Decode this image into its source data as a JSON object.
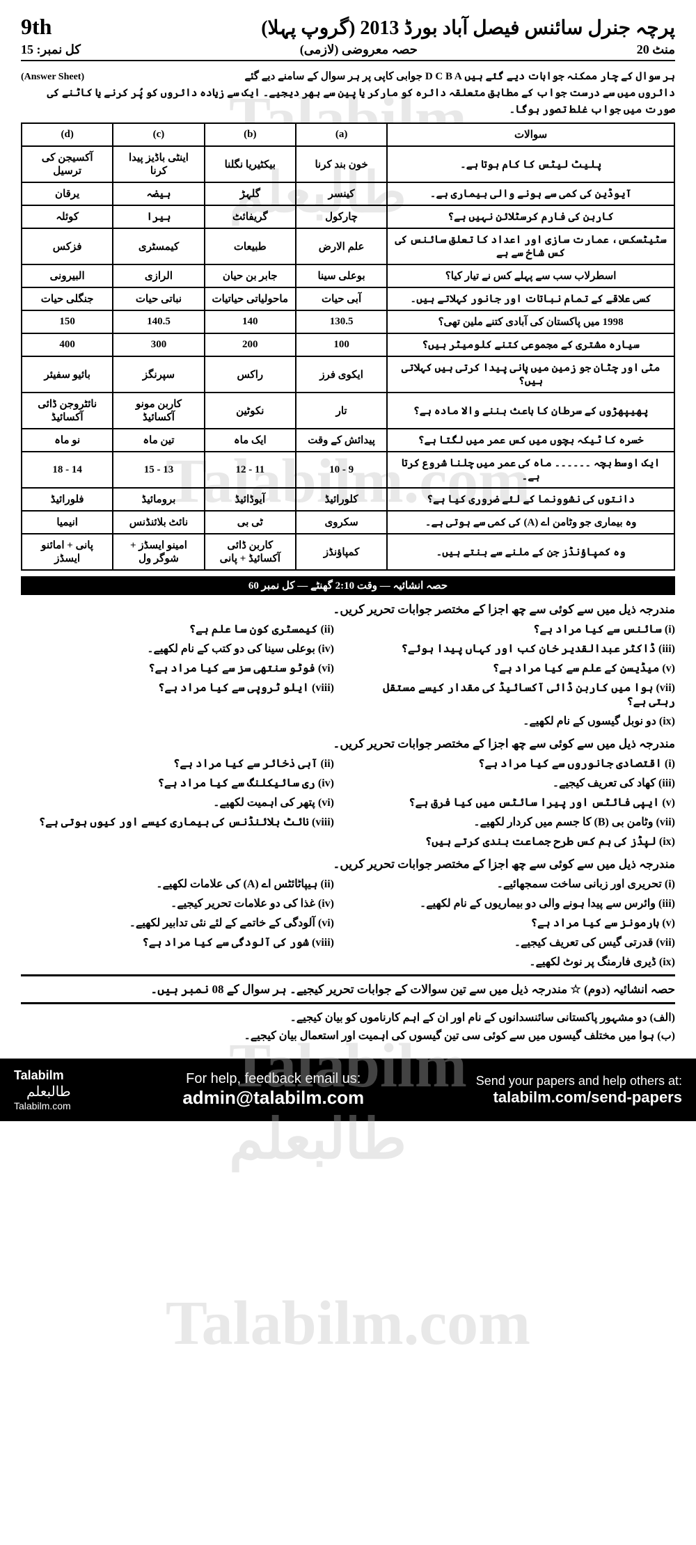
{
  "header": {
    "grade": "9th",
    "title_urdu": "پرچہ جنرل سائنس فیصل آباد بورڈ 2013 (گروپ پہلا)",
    "sub_left": "کل نمبر: 15",
    "sub_center": "حصہ معروضی (لازمی)",
    "sub_right": "20 منٹ"
  },
  "instructions": {
    "answer_sheet": "(Answer Sheet)",
    "line1": "ہر سوال کے چار ممکنہ جوابات دیے گئے ہیں D C B A جوابی کاپی پر ہر سوال کے سامنے دیے گئے",
    "line2": "دائروں میں سے درست جواب کے مطابق متعلقہ دائرہ کو مارکر یا پین سے بھر دیجیے۔ ایک سے زیادہ دائروں کو پُر کرنے یا کاٹنے کی صورت میں جواب غلط تصور ہوگا۔"
  },
  "mcq_headers": {
    "q": "سوالات",
    "a": "(a)",
    "b": "(b)",
    "c": "(c)",
    "d": "(d)"
  },
  "mcq_rows": [
    {
      "q": "پلیٹ لیٹس کا کام ہوتا ہے۔",
      "a": "خون بند کرنا",
      "b": "بیکٹیریا نگلنا",
      "c": "اینٹی باڈیز پیدا کرنا",
      "d": "آکسیجن کی ترسیل"
    },
    {
      "q": "آیوڈین کی کمی سے ہونے والی بیماری ہے۔",
      "a": "کینسر",
      "b": "گلہڑ",
      "c": "ہیضہ",
      "d": "یرقان"
    },
    {
      "q": "کاربن کی فارم کرسٹلائن نہیں ہے؟",
      "a": "چارکول",
      "b": "گریفائٹ",
      "c": "ہیرا",
      "d": "کوئلہ"
    },
    {
      "q": "سٹیٹسکس، عمارت سازی اور اعداد کا تعلق سائنس کی کس شاخ سے ہے",
      "a": "علم الارض",
      "b": "طبیعات",
      "c": "کیمسٹری",
      "d": "فزکس"
    },
    {
      "q": "اسطرلاب سب سے پہلے کس نے تیار کیا؟",
      "a": "بوعلی سینا",
      "b": "جابر بن حیان",
      "c": "الرازی",
      "d": "البیرونی"
    },
    {
      "q": "کسی علاقے کے تمام نباتات اور جانور کہلاتے ہیں۔",
      "a": "آبی حیات",
      "b": "ماحولیاتی حیاتیات",
      "c": "نباتی حیات",
      "d": "جنگلی حیات"
    },
    {
      "q": "1998 میں پاکستان کی آبادی کتنے ملین تھی؟",
      "a": "130.5",
      "b": "140",
      "c": "140.5",
      "d": "150"
    },
    {
      "q": "سیارہ مشتری کے مجموعی کتنے کلومیٹر ہیں؟",
      "a": "100",
      "b": "200",
      "c": "300",
      "d": "400"
    },
    {
      "q": "مٹی اور چٹان جو زمین میں پانی پیدا کرتی ہیں کہلاتی ہیں؟",
      "a": "ایکوی فرز",
      "b": "راکس",
      "c": "سپرنگز",
      "d": "بائیو سفیئر"
    },
    {
      "q": "پھیپھڑوں کے سرطان کا باعث بننے والا مادہ ہے؟",
      "a": "تار",
      "b": "نکوٹین",
      "c": "کاربن مونو آکسائیڈ",
      "d": "نائٹروجن ڈائی آکسائیڈ"
    },
    {
      "q": "خسرہ کا ٹیکہ بچوں میں کس عمر میں لگتا ہے؟",
      "a": "پیدائش کے وقت",
      "b": "ایک ماہ",
      "c": "تین ماہ",
      "d": "نو ماہ"
    },
    {
      "q": "ایک اوسط بچہ ۔۔۔۔۔۔ ماہ کی عمر میں چلنا شروع کرتا ہے۔",
      "a": "9 - 10",
      "b": "11 - 12",
      "c": "13 - 15",
      "d": "14 - 18"
    },
    {
      "q": "دانتوں کی نشوونما کے لئے ضروری کیا ہے؟",
      "a": "کلورائیڈ",
      "b": "آیوڈائیڈ",
      "c": "برومائیڈ",
      "d": "فلورائیڈ"
    },
    {
      "q": "وہ بیماری جو وٹامن اے (A) کی کمی سے ہوتی ہے۔",
      "a": "سکروی",
      "b": "ٹی بی",
      "c": "نائٹ بلائنڈنس",
      "d": "انیمیا"
    },
    {
      "q": "وہ کمپاؤنڈز جن کے ملنے سے بنتے ہیں۔",
      "a": "کمپاؤنڈز",
      "b": "کاربن ڈائی آکسائیڈ + پانی",
      "c": "امینو ایسڈز + شوگر ول",
      "d": "پانی + امائنو ایسڈز"
    }
  ],
  "section_bar": "حصہ انشائیہ — وقت 2:10 گھنٹے — کل نمبر 60",
  "sq_heading_1": "مندرجہ ذیل میں سے کوئی سے چھ اجزا کے مختصر جوابات تحریر کریں۔",
  "sq2": {
    "q": "سوال نمبر 2",
    "items": [
      "(i) سائنس سے کیا مراد ہے؟",
      "(ii) کیمسٹری کون سا علم ہے؟",
      "(iii) ڈاکٹر عبدالقدیر خان کب اور کہاں پیدا ہوئے؟",
      "(iv) بوعلی سینا کی دو کتب کے نام لکھیے۔",
      "(v) میڈیسن کے علم سے کیا مراد ہے؟",
      "(vi) فوٹو سنتھی سز سے کیا مراد ہے؟",
      "(vii) ہوا میں کاربن ڈائی آکسائیڈ کی مقدار کیسے مستقل رہتی ہے؟",
      "(viii) ایلو ٹروپی سے کیا مراد ہے؟",
      "(ix) دو نوبل گیسوں کے نام لکھیے۔"
    ]
  },
  "sq_heading_2": "مندرجہ ذیل میں سے کوئی سے چھ اجزا کے مختصر جوابات تحریر کریں۔",
  "sq3": {
    "q": "سوال نمبر 3",
    "items": [
      "(i) اقتصادی جانوروں سے کیا مراد ہے؟",
      "(ii) آبی ذخائر سے کیا مراد ہے؟",
      "(iii) کھاد کی تعریف کیجیے۔",
      "(iv) ری سائیکلنگ سے کیا مراد ہے؟",
      "(v) ایپی فائٹس اور پیرا سائٹس میں کیا فرق ہے؟",
      "(vi) پتھر کی اہمیت لکھیے۔",
      "(vii) وٹامن بی (B) کا جسم میں کردار لکھیے۔",
      "(viii) نائٹ بلائنڈنس کی بیماری کیسے اور کیوں ہوتی ہے؟",
      "(ix) لپڈز کی ہم کس طرح جماعت بندی کرتے ہیں؟"
    ]
  },
  "sq_heading_3": "مندرجہ ذیل میں سے کوئی سے چھ اجزا کے مختصر جوابات تحریر کریں۔",
  "sq4": {
    "q": "سوال نمبر 4",
    "items": [
      "(i) تحریری اور زبانی ساخت سمجھائیے۔",
      "(ii) ہیپاٹائٹس اے (A) کی علامات لکھیے۔",
      "(iii) وائرس سے پیدا ہونے والی دو بیماریوں کے نام لکھیے۔",
      "(iv) غذا کی دو علامات تحریر کیجیے۔",
      "(v) ہارمونز سے کیا مراد ہے؟",
      "(vi) آلودگی کے خاتمے کے لئے نئی تدابیر لکھیے۔",
      "(vii) قدرتی گیس کی تعریف کیجیے۔",
      "(viii) شور کی آلودگی سے کیا مراد ہے؟",
      "(ix) ڈیری فارمنگ پر نوٹ لکھیے۔"
    ]
  },
  "long_heading": "حصہ انشائیہ (دوم) ☆ مندرجہ ذیل میں سے تین سوالات کے جوابات تحریر کیجیے۔ ہر سوال کے 08 نمبر ہیں۔",
  "long": [
    "(الف) دو مشہور پاکستانی سائنسدانوں کے نام اور ان کے اہم کارناموں کو بیان کیجیے۔",
    "(ب) ہوا میں مختلف گیسوں میں سے کوئی سی تین گیسوں کی اہمیت اور استعمال بیان کیجیے۔"
  ],
  "watermarks": {
    "w1": "Talabilm",
    "w1u": "طالبعلم",
    "w2": "Talabilm.com",
    "w3": "Talabilm",
    "w3u": "طالبعلم",
    "w4": "Talabilm.com"
  },
  "footer": {
    "brand": "Talabilm",
    "brand_urdu": "طالبعلم",
    "site": "Talabilm.com",
    "mid_text": "For help, feedback email us:",
    "email": "admin@talabilm.com",
    "right_text": "Send your papers and help others at:",
    "link": "talabilm.com/send-papers"
  }
}
